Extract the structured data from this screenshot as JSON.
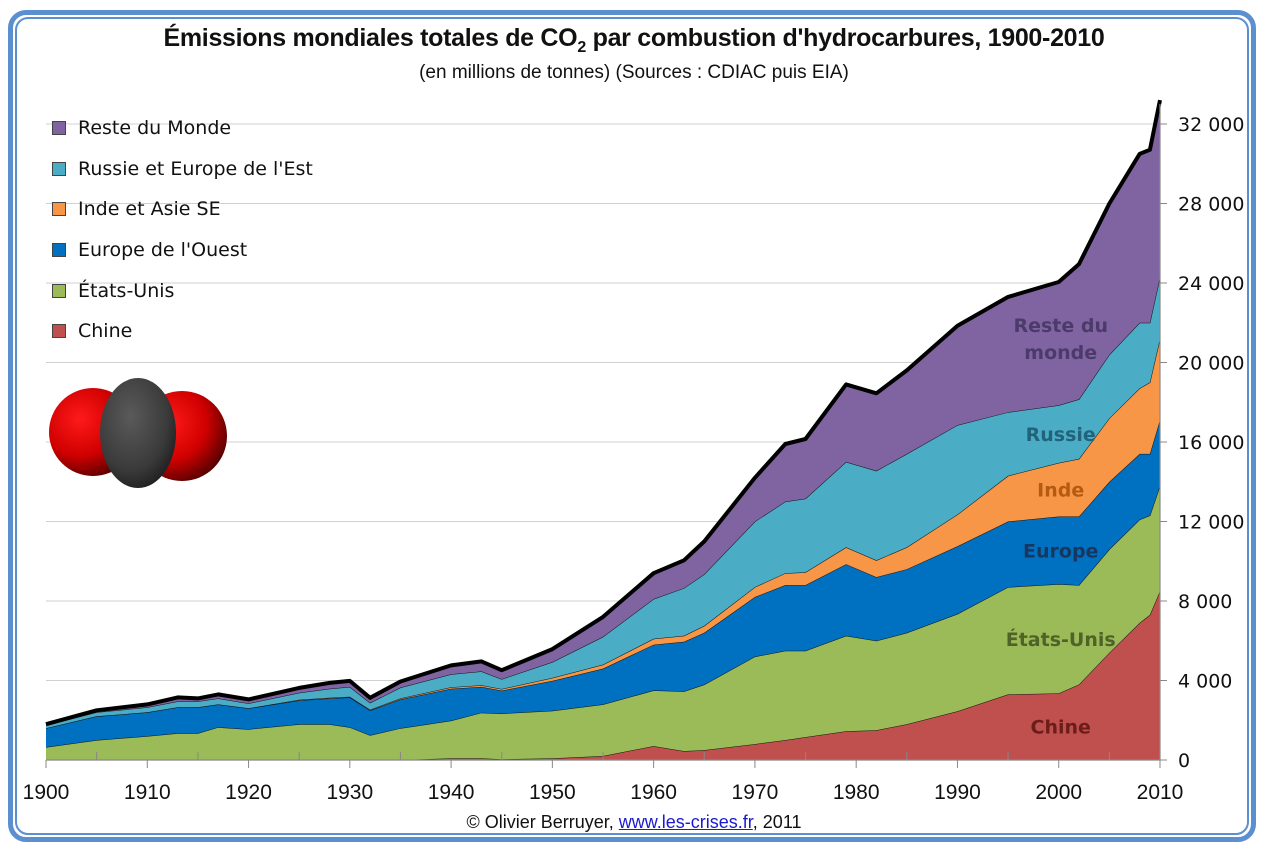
{
  "chart_data": {
    "type": "area",
    "stacked": true,
    "title": "Émissions mondiales totales de CO2 par combustion d'hydrocarbures, 1900-2010",
    "title_parts": {
      "before": "Émissions mondiales totales de CO",
      "sub": "2",
      "after": " par combustion d'hydrocarbures, 1900-2010"
    },
    "subtitle": "(en millions de tonnes) (Sources : CDIAC puis EIA)",
    "xlabel": "",
    "ylabel": "",
    "xlim": [
      1900,
      2010
    ],
    "ylim": [
      0,
      32000
    ],
    "x_ticks": [
      "1900",
      "1910",
      "1920",
      "1930",
      "1940",
      "1950",
      "1960",
      "1970",
      "1980",
      "1990",
      "2000",
      "2010"
    ],
    "y_ticks": [
      "0",
      "4 000",
      "8 000",
      "12 000",
      "16 000",
      "20 000",
      "24 000",
      "28 000",
      "32 000"
    ],
    "y_tick_values": [
      0,
      4000,
      8000,
      12000,
      16000,
      20000,
      24000,
      28000,
      32000
    ],
    "y_axis_side": "right",
    "grid": true,
    "legend_position": "top-left",
    "x": [
      1900,
      1905,
      1910,
      1913,
      1915,
      1917,
      1920,
      1925,
      1928,
      1930,
      1932,
      1935,
      1940,
      1943,
      1945,
      1950,
      1955,
      1960,
      1963,
      1965,
      1970,
      1973,
      1975,
      1979,
      1982,
      1985,
      1990,
      1995,
      2000,
      2002,
      2005,
      2008,
      2009,
      2010
    ],
    "series": [
      {
        "name": "Chine",
        "color": "#c0504d",
        "values": [
          0,
          0,
          0,
          0,
          0,
          0,
          0,
          0,
          0,
          0,
          0,
          0,
          80,
          80,
          40,
          80,
          200,
          700,
          450,
          500,
          800,
          1000,
          1150,
          1450,
          1500,
          1800,
          2450,
          3300,
          3350,
          3800,
          5400,
          6900,
          7300,
          8500
        ]
      },
      {
        "name": "États-Unis",
        "color": "#9bbb59",
        "values": [
          650,
          1000,
          1200,
          1350,
          1350,
          1650,
          1550,
          1800,
          1800,
          1650,
          1250,
          1600,
          1900,
          2300,
          2300,
          2400,
          2600,
          2800,
          3000,
          3300,
          4400,
          4500,
          4350,
          4800,
          4500,
          4600,
          4900,
          5400,
          5500,
          5000,
          5200,
          5200,
          5000,
          5300
        ]
      },
      {
        "name": "Europe de l'Ouest",
        "color": "#0070c0",
        "values": [
          950,
          1200,
          1200,
          1300,
          1300,
          1150,
          1050,
          1200,
          1300,
          1500,
          1250,
          1450,
          1600,
          1300,
          1150,
          1500,
          1800,
          2300,
          2500,
          2600,
          3000,
          3300,
          3300,
          3600,
          3200,
          3200,
          3400,
          3300,
          3400,
          3450,
          3400,
          3300,
          3100,
          3300
        ]
      },
      {
        "name": "Inde et Asie SE",
        "color": "#f79646",
        "values": [
          0,
          0,
          0,
          0,
          0,
          0,
          0,
          30,
          30,
          30,
          30,
          50,
          80,
          80,
          80,
          150,
          200,
          300,
          300,
          350,
          500,
          600,
          650,
          850,
          850,
          1100,
          1600,
          2300,
          2700,
          2900,
          3200,
          3300,
          3600,
          4100
        ]
      },
      {
        "name": "Russie et Europe de l'Est",
        "color": "#4bacc6",
        "values": [
          150,
          200,
          250,
          300,
          300,
          300,
          250,
          350,
          450,
          500,
          350,
          550,
          650,
          700,
          500,
          800,
          1400,
          2000,
          2400,
          2600,
          3300,
          3600,
          3700,
          4300,
          4500,
          4700,
          4500,
          3200,
          2900,
          3000,
          3200,
          3300,
          3000,
          3100
        ]
      },
      {
        "name": "Reste du Monde",
        "color": "#8064a2",
        "values": [
          50,
          100,
          150,
          200,
          150,
          200,
          200,
          250,
          300,
          300,
          250,
          300,
          450,
          500,
          450,
          650,
          1000,
          1300,
          1400,
          1650,
          2200,
          2900,
          3000,
          3900,
          3900,
          4200,
          5000,
          5800,
          6200,
          6800,
          7600,
          8500,
          8700,
          8900
        ]
      }
    ],
    "total_line_color": "#000000",
    "annotations": [
      {
        "text": "Reste du monde",
        "series": "Reste du Monde",
        "color": "#4b3a6a"
      },
      {
        "text": "Russie",
        "series": "Russie et Europe de l'Est",
        "color": "#21637a"
      },
      {
        "text": "Inde",
        "series": "Inde et Asie SE",
        "color": "#b45a12"
      },
      {
        "text": "Europe",
        "series": "Europe de l'Ouest",
        "color": "#17375e"
      },
      {
        "text": "États-Unis",
        "series": "États-Unis",
        "color": "#4f6228"
      },
      {
        "text": "Chine",
        "series": "Chine",
        "color": "#6b1d1b"
      }
    ]
  },
  "legend": {
    "items": [
      {
        "label": "Reste du Monde",
        "color": "#8064a2"
      },
      {
        "label": "Russie et Europe de l'Est",
        "color": "#4bacc6"
      },
      {
        "label": "Inde et Asie SE",
        "color": "#f79646"
      },
      {
        "label": "Europe de l'Ouest",
        "color": "#0070c0"
      },
      {
        "label": "États-Unis",
        "color": "#9bbb59"
      },
      {
        "label": "Chine",
        "color": "#c0504d"
      }
    ]
  },
  "footer": {
    "prefix": "© Olivier Berruyer, ",
    "link_text": "www.les-crises.fr",
    "suffix": ",  2011"
  },
  "illustration": {
    "icon": "co2-molecule-icon"
  },
  "frame_color": "#5b8fd0"
}
